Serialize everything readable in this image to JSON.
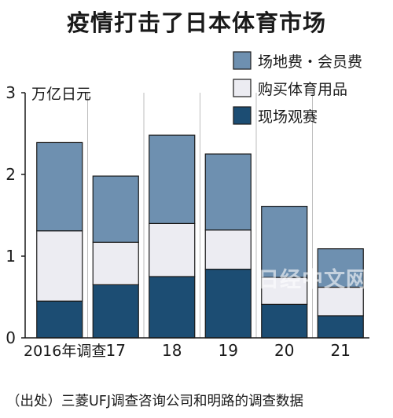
{
  "chart_data": {
    "type": "bar",
    "stacked": true,
    "title": "疫情打击了日本体育市场",
    "unit": "万亿日元",
    "categories": [
      "2016年调查",
      "17",
      "18",
      "19",
      "20",
      "21"
    ],
    "series": [
      {
        "name": "现场观赛",
        "color": "#1c4d73",
        "values": [
          0.45,
          0.65,
          0.75,
          0.84,
          0.41,
          0.27
        ]
      },
      {
        "name": "购买体育用品",
        "color": "#ececf2",
        "values": [
          0.86,
          0.52,
          0.65,
          0.48,
          0.33,
          0.35
        ]
      },
      {
        "name": "场地费・会员费",
        "color": "#6e90b0",
        "values": [
          1.08,
          0.81,
          1.08,
          0.93,
          0.87,
          0.47
        ]
      }
    ],
    "legend_order": [
      2,
      1,
      0
    ],
    "legend_position": "top-right",
    "yticks": [
      0,
      1,
      2,
      3
    ],
    "ylim": [
      0,
      3
    ],
    "grid": "vertical",
    "source": "（出处）三菱UFJ调查咨询公司和明路的调查数据"
  },
  "watermark": "日经中文网"
}
